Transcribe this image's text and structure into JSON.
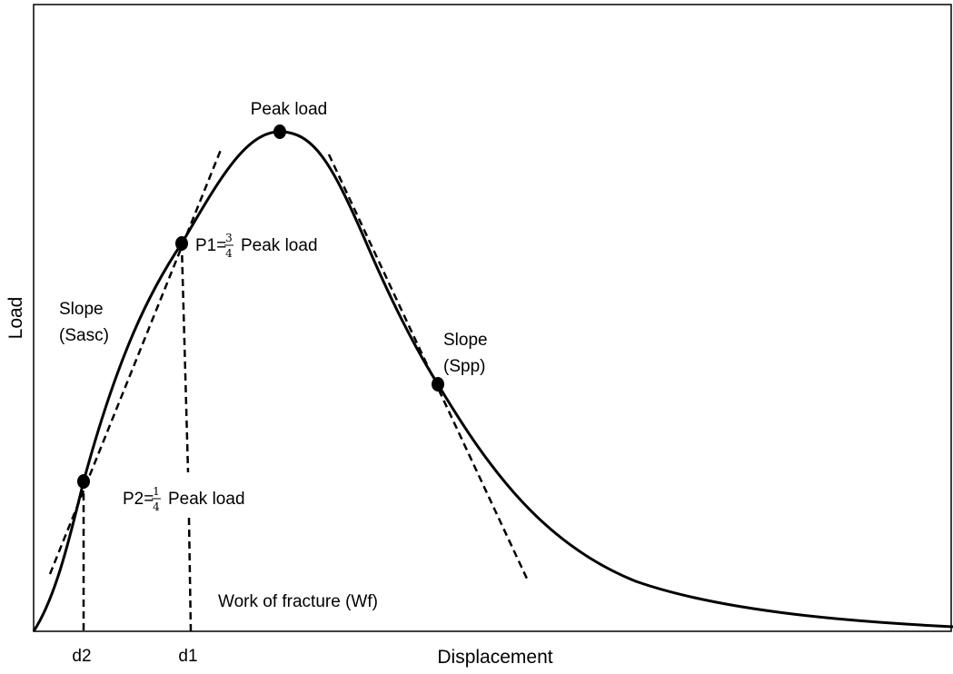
{
  "labels": {
    "peak": "Peak load",
    "p1": {
      "prefix": "P1=",
      "numerator": "3",
      "denominator": "4",
      "suffix": "Peak load"
    },
    "p2": {
      "prefix": "P2=",
      "numerator": "1",
      "denominator": "4",
      "suffix": "Peak load"
    },
    "slope_asc": [
      "Slope",
      "(Sasc)"
    ],
    "slope_pp": [
      "Slope",
      "(Spp)"
    ],
    "work": "Work of fracture (Wf)",
    "d2": "d2",
    "d1": "d1"
  },
  "axes": {
    "x_label": "Displacement",
    "y_label": "Load"
  }
}
